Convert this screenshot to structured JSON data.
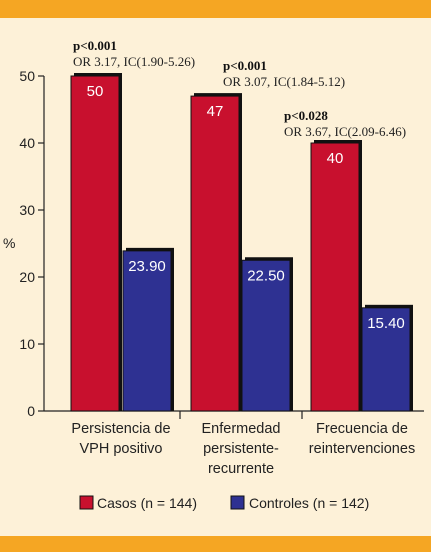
{
  "chart_data": {
    "type": "bar",
    "ylabel": "%",
    "ylim": [
      0,
      50
    ],
    "yticks": [
      0,
      10,
      20,
      30,
      40,
      50
    ],
    "categories": [
      [
        "Persistencia de",
        "VPH positivo"
      ],
      [
        "Enfermedad",
        "persistente-",
        "recurrente"
      ],
      [
        "Frecuencia de",
        "reintervenciones"
      ]
    ],
    "series": [
      {
        "name": "Casos (n = 144)",
        "color": "#c8102e",
        "values": [
          50,
          47,
          40
        ],
        "labels": [
          "50",
          "47",
          "40"
        ]
      },
      {
        "name": "Controles (n = 142)",
        "color": "#2e3192",
        "values": [
          23.9,
          22.5,
          15.4
        ],
        "labels": [
          "23.90",
          "22.50",
          "15.40"
        ]
      }
    ],
    "annotations": [
      {
        "p": "p<0.001",
        "or": "OR 3.17, IC(1.90-5.26)"
      },
      {
        "p": "p<0.001",
        "or": "OR 3.07, IC(1.84-5.12)"
      },
      {
        "p": "p<0.028",
        "or": "OR 3.67, IC(2.09-6.46)"
      }
    ],
    "legend": "bottom",
    "grid": false
  }
}
